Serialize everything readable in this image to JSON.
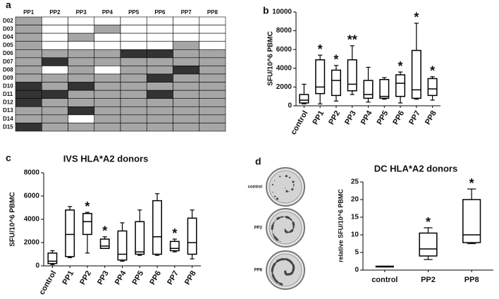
{
  "chart_data": [
    {
      "type": "heatmap",
      "panel": "a",
      "columns": [
        "PP1",
        "PP2",
        "PP3",
        "PP4",
        "PP5",
        "PP6",
        "PP7",
        "PP8"
      ],
      "rows": [
        "D02",
        "D03",
        "D04",
        "D05",
        "D06",
        "D07",
        "D08",
        "D09",
        "D10",
        "D11",
        "D12",
        "D13",
        "D14",
        "D15"
      ],
      "cells": [
        [
          1,
          0,
          0,
          0,
          0,
          0,
          0,
          0
        ],
        [
          1,
          0,
          0,
          1,
          0,
          0,
          0,
          0
        ],
        [
          1,
          0,
          1,
          0,
          0,
          0,
          0,
          0
        ],
        [
          1,
          0,
          0,
          0,
          0,
          0,
          1,
          0
        ],
        [
          1,
          1,
          1,
          1,
          2,
          2,
          1,
          1
        ],
        [
          1,
          2,
          1,
          1,
          1,
          1,
          1,
          1
        ],
        [
          1,
          0,
          1,
          0,
          1,
          1,
          2,
          1
        ],
        [
          1,
          1,
          1,
          1,
          1,
          2,
          1,
          1
        ],
        [
          2,
          1,
          2,
          1,
          1,
          1,
          1,
          1
        ],
        [
          2,
          2,
          1,
          1,
          1,
          2,
          1,
          1
        ],
        [
          2,
          1,
          1,
          1,
          1,
          1,
          1,
          1
        ],
        [
          1,
          1,
          2,
          1,
          1,
          1,
          1,
          1
        ],
        [
          1,
          1,
          0,
          1,
          1,
          1,
          1,
          1
        ],
        [
          2,
          1,
          1,
          1,
          1,
          1,
          1,
          1
        ]
      ],
      "colors": [
        "#ffffff",
        "#a6a6a6",
        "#333333"
      ]
    },
    {
      "type": "box",
      "panel": "b",
      "y_label": "SFU/10^6 PBMC",
      "categories": [
        "control",
        "PP1",
        "PP2",
        "PP3",
        "PP4",
        "PP5",
        "PP6",
        "PP7",
        "PP8"
      ],
      "min": [
        200,
        200,
        500,
        1200,
        400,
        700,
        300,
        700,
        600
      ],
      "q1": [
        300,
        1300,
        1100,
        1600,
        800,
        800,
        1000,
        800,
        1100
      ],
      "median": [
        600,
        2000,
        2700,
        2300,
        1200,
        1000,
        2400,
        1700,
        1800
      ],
      "q3": [
        1200,
        4900,
        3800,
        4900,
        2700,
        2800,
        3300,
        5900,
        2900
      ],
      "max": [
        2300,
        5400,
        4300,
        6400,
        4100,
        3000,
        3600,
        8800,
        3100
      ],
      "significance": [
        null,
        "*",
        "*",
        "**",
        null,
        null,
        "*",
        "*",
        "*"
      ],
      "ylim": [
        0,
        10000
      ],
      "yticks": [
        0,
        2000,
        4000,
        6000,
        8000,
        10000
      ],
      "color": "#000000"
    },
    {
      "type": "box",
      "panel": "c",
      "title": "IVS HLA*A2 donors",
      "y_label": "SFU/10^6 PBMC",
      "categories": [
        "control",
        "PP1",
        "PP2",
        "PP3",
        "PP4",
        "PP5",
        "PP6",
        "PP7",
        "PP8"
      ],
      "min": [
        100,
        700,
        1100,
        1500,
        400,
        900,
        900,
        1200,
        600
      ],
      "q1": [
        200,
        800,
        2700,
        1500,
        500,
        1000,
        1000,
        1300,
        1000
      ],
      "median": [
        400,
        2700,
        3800,
        1700,
        1000,
        1200,
        2500,
        1500,
        2000
      ],
      "q3": [
        1100,
        4800,
        4500,
        2300,
        3000,
        3800,
        5600,
        2100,
        4100
      ],
      "max": [
        1300,
        5100,
        4600,
        2500,
        3700,
        4800,
        6200,
        2300,
        4800
      ],
      "significance": [
        null,
        null,
        "*",
        "*",
        null,
        null,
        null,
        "*",
        null
      ],
      "ylim": [
        0,
        8000
      ],
      "yticks": [
        0,
        2000,
        4000,
        6000,
        8000
      ],
      "color": "#000000"
    },
    {
      "type": "box",
      "panel": "d",
      "title": "DC HLA*A2 donors",
      "y_label": "relative SFU/10^6 PBMC",
      "plate_labels": [
        "control",
        "PP2",
        "PP8"
      ],
      "categories": [
        "control",
        "PP2",
        "PP8"
      ],
      "min": [
        0.9,
        3,
        7.5
      ],
      "q1": [
        0.9,
        4,
        7.8
      ],
      "median": [
        1,
        6,
        10
      ],
      "q3": [
        1.1,
        10.5,
        20
      ],
      "max": [
        1.1,
        12,
        23
      ],
      "significance": [
        null,
        "*",
        "*"
      ],
      "ylim": [
        0,
        25
      ],
      "yticks": [
        0,
        5,
        10,
        15,
        20,
        25
      ],
      "color": "#000000"
    }
  ]
}
